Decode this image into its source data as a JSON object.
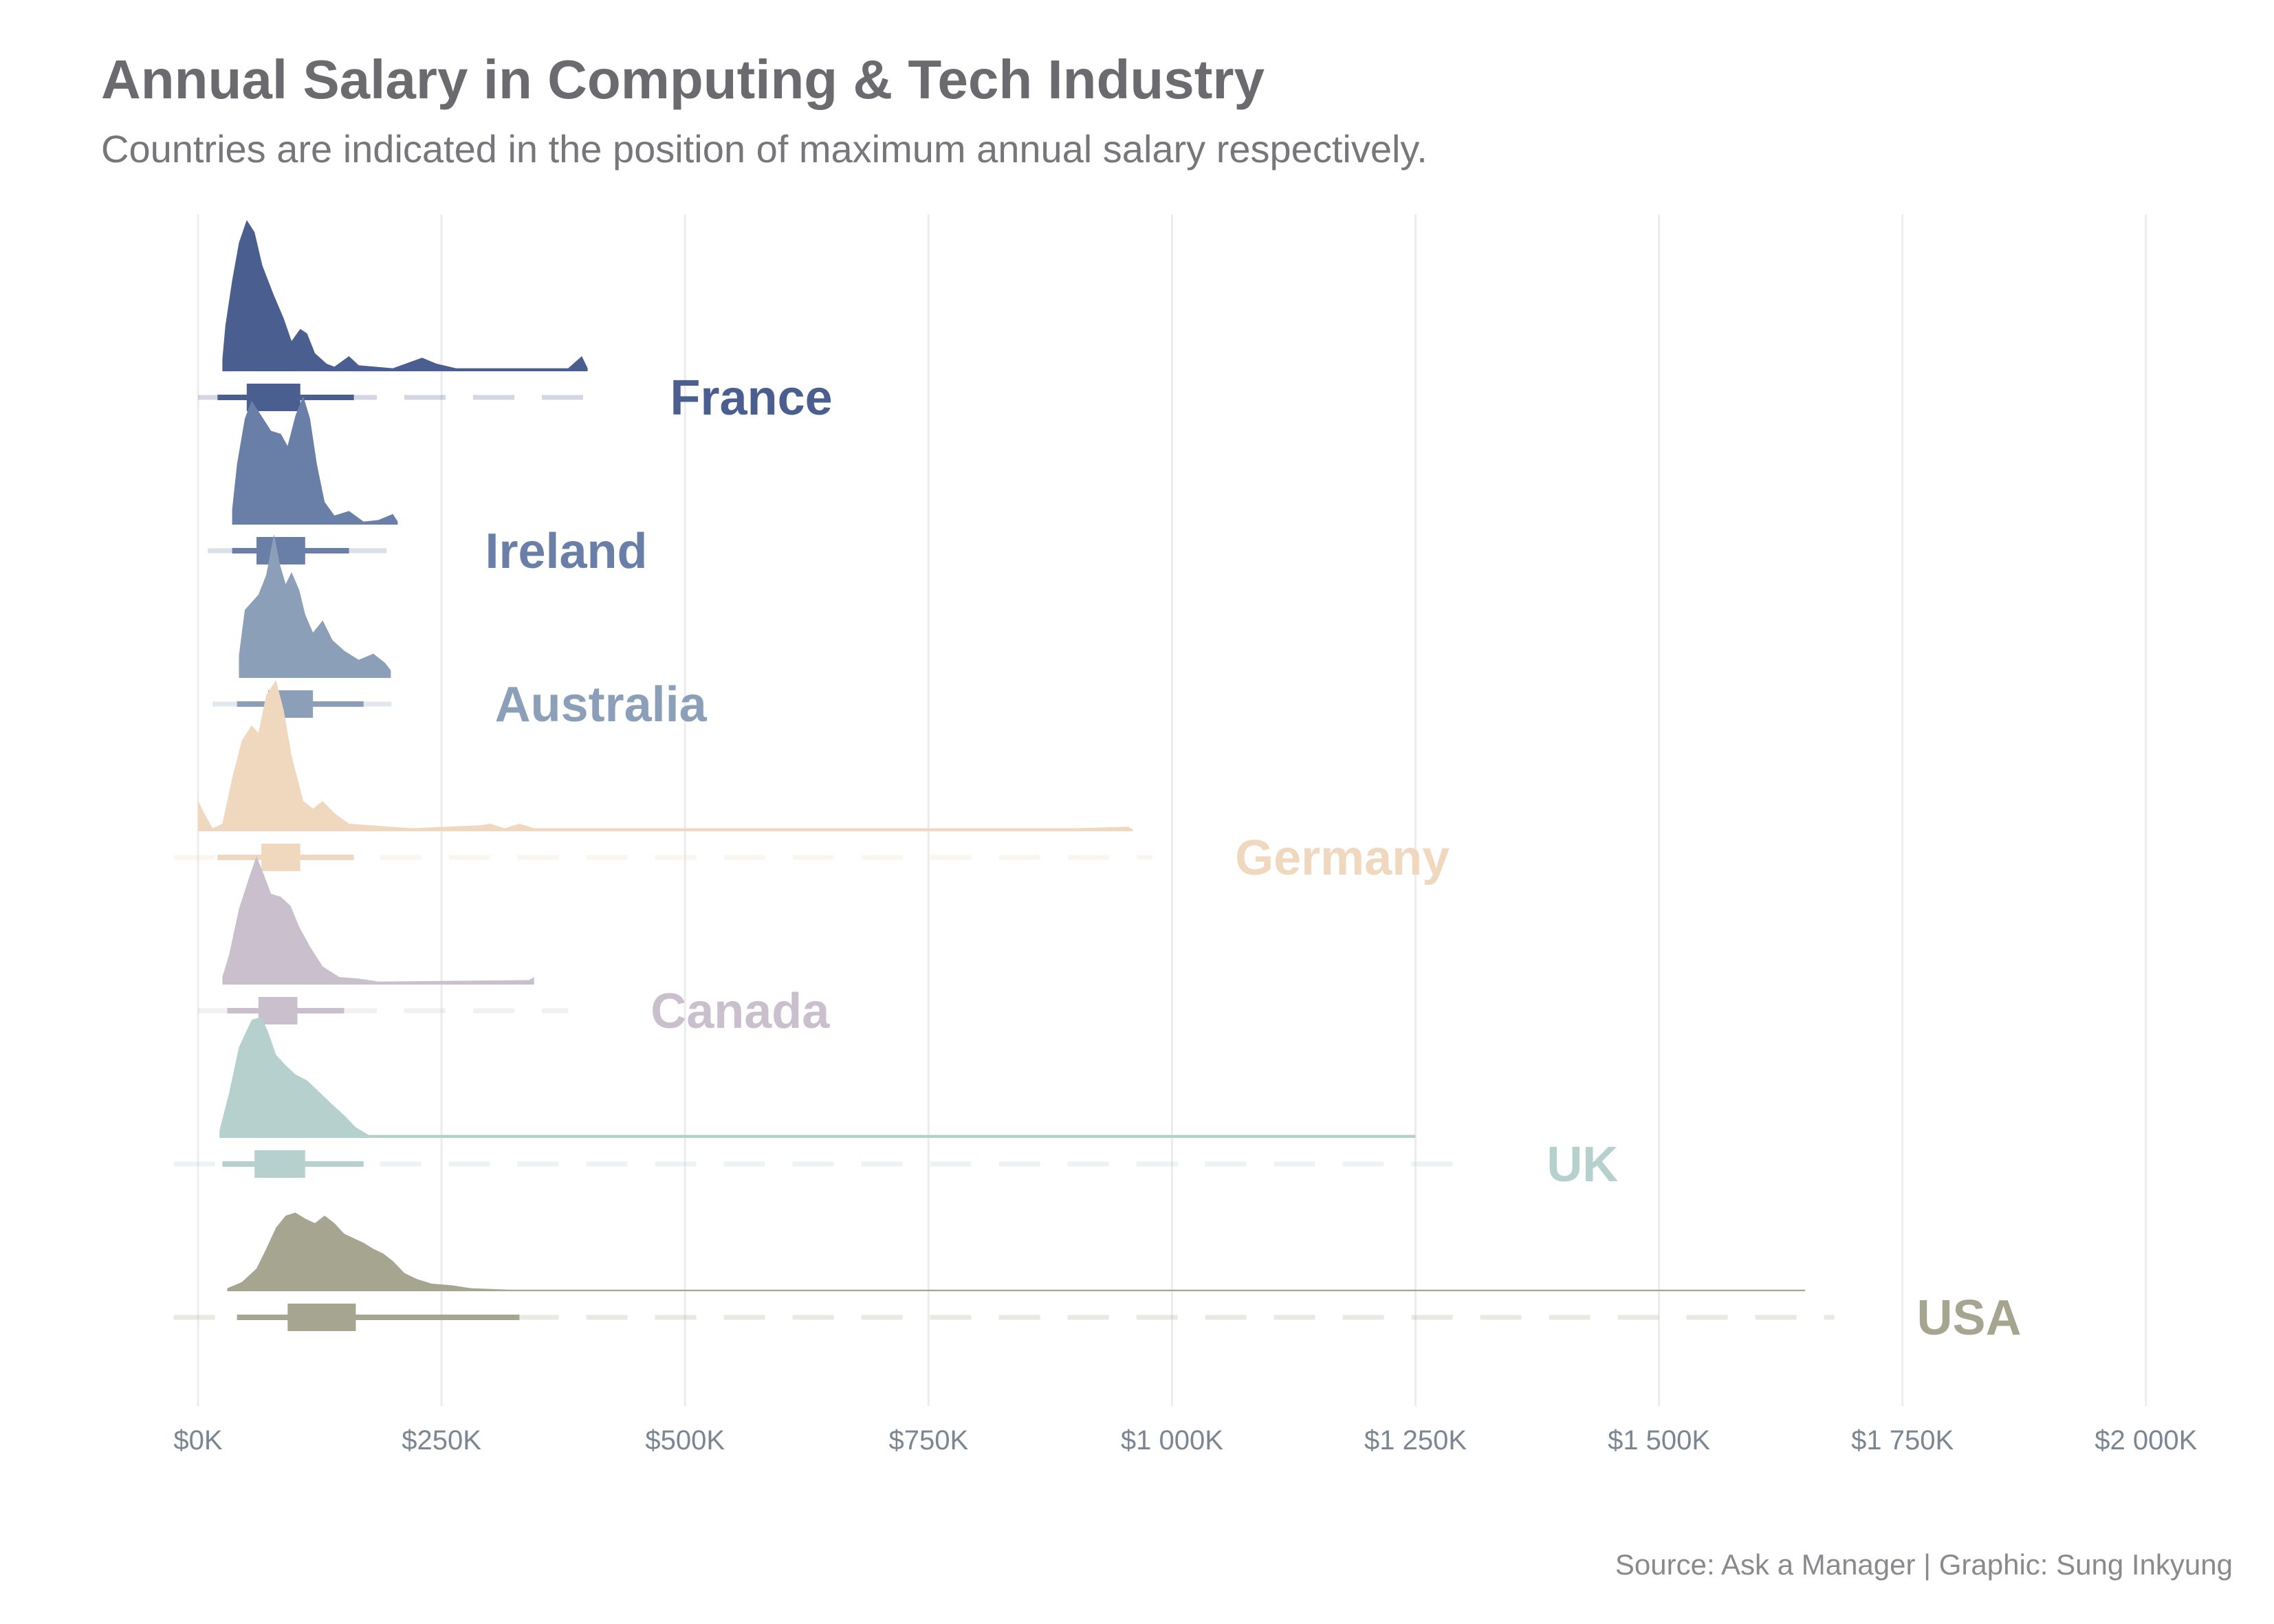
{
  "chart_data": {
    "type": "ridgeline",
    "title": "Annual Salary in Computing & Tech Industry",
    "subtitle": "Countries are indicated in the position of maximum annual salary respectively.",
    "caption": "Source: Ask a Manager | Graphic: Sung Inkyung",
    "x_ticks": [
      {
        "value": 0,
        "label": "$0K"
      },
      {
        "value": 250,
        "label": "$250K"
      },
      {
        "value": 500,
        "label": "$500K"
      },
      {
        "value": 750,
        "label": "$750K"
      },
      {
        "value": 1000,
        "label": "$1 000K"
      },
      {
        "value": 1250,
        "label": "$1 250K"
      },
      {
        "value": 1500,
        "label": "$1 500K"
      },
      {
        "value": 1750,
        "label": "$1 750K"
      },
      {
        "value": 2000,
        "label": "$2 000K"
      }
    ],
    "xlim": [
      0,
      2000
    ],
    "x_unit": "thousand USD",
    "grid": true,
    "legend": "none",
    "series": [
      {
        "name": "France",
        "color": "#4a5f8f",
        "max": 400,
        "min": 0,
        "interval_66": [
          50,
          105
        ],
        "interval_95": [
          20,
          160
        ],
        "density": [
          [
            25,
            0.08
          ],
          [
            28,
            0.3
          ],
          [
            35,
            0.6
          ],
          [
            42,
            0.85
          ],
          [
            50,
            1.0
          ],
          [
            58,
            0.92
          ],
          [
            66,
            0.7
          ],
          [
            78,
            0.5
          ],
          [
            88,
            0.35
          ],
          [
            96,
            0.2
          ],
          [
            105,
            0.28
          ],
          [
            112,
            0.25
          ],
          [
            120,
            0.12
          ],
          [
            132,
            0.05
          ],
          [
            140,
            0.03
          ],
          [
            155,
            0.1
          ],
          [
            165,
            0.04
          ],
          [
            200,
            0.02
          ],
          [
            230,
            0.09
          ],
          [
            245,
            0.05
          ],
          [
            265,
            0.02
          ],
          [
            300,
            0.02
          ],
          [
            380,
            0.02
          ],
          [
            394,
            0.1
          ],
          [
            400,
            0.02
          ]
        ]
      },
      {
        "name": "Ireland",
        "color": "#6a7fa8",
        "max": 210,
        "min": 10,
        "interval_66": [
          60,
          110
        ],
        "interval_95": [
          35,
          155
        ],
        "density": [
          [
            35,
            0.1
          ],
          [
            40,
            0.4
          ],
          [
            48,
            0.7
          ],
          [
            55,
            0.82
          ],
          [
            65,
            0.72
          ],
          [
            75,
            0.62
          ],
          [
            85,
            0.6
          ],
          [
            92,
            0.52
          ],
          [
            100,
            0.72
          ],
          [
            108,
            0.85
          ],
          [
            115,
            0.7
          ],
          [
            122,
            0.4
          ],
          [
            130,
            0.15
          ],
          [
            140,
            0.06
          ],
          [
            155,
            0.09
          ],
          [
            170,
            0.02
          ],
          [
            185,
            0.03
          ],
          [
            200,
            0.07
          ],
          [
            205,
            0.02
          ]
        ]
      },
      {
        "name": "Australia",
        "color": "#8ba0b8",
        "max": 220,
        "min": 15,
        "interval_66": [
          72,
          118
        ],
        "interval_95": [
          40,
          170
        ],
        "density": [
          [
            42,
            0.15
          ],
          [
            48,
            0.45
          ],
          [
            55,
            0.5
          ],
          [
            62,
            0.55
          ],
          [
            70,
            0.68
          ],
          [
            78,
            0.95
          ],
          [
            84,
            0.75
          ],
          [
            90,
            0.62
          ],
          [
            96,
            0.7
          ],
          [
            104,
            0.58
          ],
          [
            110,
            0.42
          ],
          [
            118,
            0.3
          ],
          [
            128,
            0.38
          ],
          [
            138,
            0.25
          ],
          [
            150,
            0.18
          ],
          [
            165,
            0.12
          ],
          [
            180,
            0.16
          ],
          [
            192,
            0.1
          ],
          [
            198,
            0.05
          ]
        ]
      },
      {
        "name": "Germany",
        "color": "#f0d8bf",
        "max": 980,
        "min": -25,
        "interval_66": [
          65,
          105
        ],
        "interval_95": [
          20,
          160
        ],
        "density": [
          [
            0,
            0.2
          ],
          [
            8,
            0.1
          ],
          [
            15,
            0.02
          ],
          [
            25,
            0.05
          ],
          [
            35,
            0.35
          ],
          [
            45,
            0.6
          ],
          [
            55,
            0.7
          ],
          [
            62,
            0.65
          ],
          [
            70,
            0.9
          ],
          [
            80,
            1.0
          ],
          [
            88,
            0.8
          ],
          [
            96,
            0.5
          ],
          [
            108,
            0.2
          ],
          [
            118,
            0.15
          ],
          [
            128,
            0.2
          ],
          [
            140,
            0.12
          ],
          [
            155,
            0.05
          ],
          [
            220,
            0.02
          ],
          [
            290,
            0.04
          ],
          [
            300,
            0.05
          ],
          [
            315,
            0.02
          ],
          [
            330,
            0.05
          ],
          [
            345,
            0.02
          ],
          [
            900,
            0.02
          ],
          [
            955,
            0.03
          ],
          [
            960,
            0.01
          ]
        ]
      },
      {
        "name": "Canada",
        "color": "#c9bfcd",
        "max": 380,
        "min": 0,
        "interval_66": [
          62,
          102
        ],
        "interval_95": [
          30,
          150
        ],
        "density": [
          [
            25,
            0.05
          ],
          [
            32,
            0.2
          ],
          [
            42,
            0.5
          ],
          [
            52,
            0.7
          ],
          [
            60,
            0.85
          ],
          [
            68,
            0.72
          ],
          [
            75,
            0.6
          ],
          [
            85,
            0.58
          ],
          [
            95,
            0.52
          ],
          [
            104,
            0.38
          ],
          [
            115,
            0.25
          ],
          [
            128,
            0.12
          ],
          [
            145,
            0.05
          ],
          [
            165,
            0.04
          ],
          [
            185,
            0.02
          ],
          [
            340,
            0.03
          ],
          [
            345,
            0.05
          ]
        ]
      },
      {
        "name": "UK",
        "color": "#b6d0ce",
        "max": 1300,
        "min": -25,
        "interval_66": [
          58,
          110
        ],
        "interval_95": [
          25,
          170
        ],
        "density": [
          [
            22,
            0.05
          ],
          [
            32,
            0.3
          ],
          [
            42,
            0.6
          ],
          [
            55,
            0.78
          ],
          [
            65,
            0.8
          ],
          [
            72,
            0.7
          ],
          [
            80,
            0.55
          ],
          [
            90,
            0.48
          ],
          [
            100,
            0.42
          ],
          [
            112,
            0.38
          ],
          [
            125,
            0.3
          ],
          [
            138,
            0.22
          ],
          [
            150,
            0.15
          ],
          [
            162,
            0.07
          ],
          [
            175,
            0.02
          ],
          [
            220,
            0.02
          ],
          [
            260,
            0.02
          ],
          [
            660,
            0.02
          ],
          [
            1250,
            0.02
          ]
        ]
      },
      {
        "name": "USA",
        "color": "#a6a690",
        "max": 1680,
        "min": -25,
        "interval_66": [
          92,
          162
        ],
        "interval_95": [
          40,
          330
        ],
        "density": [
          [
            30,
            0.02
          ],
          [
            45,
            0.06
          ],
          [
            60,
            0.15
          ],
          [
            70,
            0.28
          ],
          [
            80,
            0.42
          ],
          [
            90,
            0.5
          ],
          [
            100,
            0.52
          ],
          [
            110,
            0.48
          ],
          [
            120,
            0.45
          ],
          [
            130,
            0.5
          ],
          [
            140,
            0.45
          ],
          [
            150,
            0.38
          ],
          [
            160,
            0.35
          ],
          [
            170,
            0.32
          ],
          [
            180,
            0.28
          ],
          [
            190,
            0.25
          ],
          [
            200,
            0.2
          ],
          [
            212,
            0.12
          ],
          [
            225,
            0.08
          ],
          [
            240,
            0.05
          ],
          [
            260,
            0.04
          ],
          [
            280,
            0.02
          ],
          [
            320,
            0.01
          ],
          [
            400,
            0.01
          ],
          [
            600,
            0.01
          ],
          [
            900,
            0.01
          ],
          [
            1650,
            0.01
          ]
        ]
      }
    ]
  }
}
